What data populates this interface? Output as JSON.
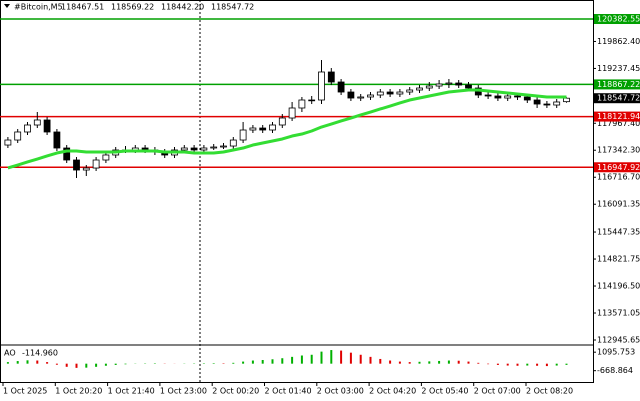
{
  "chart_data": {
    "type": "candlestick",
    "title": "#Bitcoin,M5",
    "last_bar_labels": [
      "118467.51",
      "118569.22",
      "118442.20",
      "118547.72"
    ],
    "candle_color": "#000000",
    "open": [
      117463,
      117579,
      117765,
      117927,
      118043,
      117765,
      117394,
      117116,
      116884,
      116930,
      117116,
      117232,
      117348,
      117348,
      117394,
      117348,
      117301,
      117232,
      117348,
      117394,
      117348,
      117394,
      117417,
      117440,
      117579,
      117811,
      117857,
      117811,
      117927,
      118089,
      118321,
      118506,
      118506,
      119155,
      118923,
      118691,
      118552,
      118576,
      118622,
      118691,
      118645,
      118691,
      118738,
      118784,
      118830,
      118877,
      118900,
      118853,
      118784,
      118622,
      118599,
      118552,
      118599,
      118576,
      118506,
      118413,
      118390,
      118467.51
    ],
    "high": [
      117649,
      117834,
      117997,
      118228,
      118113,
      117834,
      117463,
      117185,
      117000,
      117185,
      117301,
      117417,
      117440,
      117463,
      117463,
      117417,
      117371,
      117417,
      117463,
      117463,
      117463,
      117487,
      117510,
      117649,
      117997,
      117927,
      117927,
      117997,
      118182,
      118460,
      118576,
      118599,
      119433,
      119247,
      118993,
      118761,
      118645,
      118691,
      118761,
      118761,
      118761,
      118807,
      118853,
      118923,
      118969,
      118993,
      118969,
      118923,
      118853,
      118691,
      118668,
      118668,
      118668,
      118645,
      118576,
      118483,
      118529,
      118569.22
    ],
    "low": [
      117394,
      117510,
      117695,
      117857,
      117695,
      117325,
      117046,
      116699,
      116745,
      116861,
      117046,
      117162,
      117278,
      117278,
      117278,
      117232,
      117162,
      117162,
      117278,
      117278,
      117278,
      117348,
      117371,
      117371,
      117510,
      117742,
      117742,
      117742,
      117857,
      118020,
      118228,
      118413,
      118413,
      118853,
      118622,
      118483,
      118483,
      118506,
      118552,
      118576,
      118576,
      118622,
      118668,
      118715,
      118761,
      118784,
      118784,
      118715,
      118552,
      118529,
      118483,
      118483,
      118506,
      118437,
      118321,
      118321,
      118321,
      118442.2
    ],
    "close": [
      117579,
      117765,
      117927,
      118043,
      117765,
      117394,
      117116,
      116884,
      116930,
      117116,
      117232,
      117348,
      117348,
      117394,
      117348,
      117301,
      117232,
      117348,
      117394,
      117348,
      117394,
      117417,
      117440,
      117579,
      117811,
      117857,
      117811,
      117927,
      118089,
      118321,
      118506,
      118506,
      119155,
      118923,
      118691,
      118552,
      118576,
      118622,
      118691,
      118645,
      118691,
      118738,
      118784,
      118830,
      118877,
      118900,
      118853,
      118784,
      118622,
      118599,
      118552,
      118599,
      118576,
      118506,
      118413,
      118390,
      118460,
      118547.72
    ],
    "ma": {
      "color": "#33dd33",
      "values": [
        116931,
        117000,
        117070,
        117139,
        117209,
        117278,
        117325,
        117325,
        117301,
        117301,
        117301,
        117301,
        117325,
        117325,
        117325,
        117325,
        117301,
        117301,
        117301,
        117278,
        117278,
        117278,
        117301,
        117348,
        117394,
        117463,
        117510,
        117556,
        117603,
        117672,
        117718,
        117788,
        117880,
        117950,
        118020,
        118089,
        118159,
        118228,
        118298,
        118367,
        118437,
        118506,
        118552,
        118599,
        118645,
        118691,
        118715,
        118738,
        118738,
        118715,
        118691,
        118668,
        118645,
        118622,
        118599,
        118576,
        118576,
        118576
      ]
    },
    "levels": [
      {
        "value": 120382.55,
        "color": "#00a000"
      },
      {
        "value": 118867.22,
        "color": "#00a000"
      },
      {
        "value": 118121.94,
        "color": "#e00000"
      },
      {
        "value": 116947.92,
        "color": "#e00000"
      }
    ],
    "ylim": [
      112830,
      120823
    ],
    "yticks": [
      {
        "value": 119862.4,
        "label": "119862.40"
      },
      {
        "value": 119237.45,
        "label": "119237.45"
      },
      {
        "value": 117967.4,
        "label": "117967.40"
      },
      {
        "value": 117342.3,
        "label": "117342.30"
      },
      {
        "value": 116716.7,
        "label": "116716.70"
      },
      {
        "value": 116091.35,
        "label": "116091.35"
      },
      {
        "value": 115447.35,
        "label": "115447.35"
      },
      {
        "value": 114821.75,
        "label": "114821.75"
      },
      {
        "value": 114196.5,
        "label": "114196.50"
      },
      {
        "value": 113571.05,
        "label": "113571.05"
      },
      {
        "value": 112945.65,
        "label": "112945.65"
      }
    ],
    "time_labels": [
      "1 Oct 2025",
      "1 Oct 20:20",
      "1 Oct 21:40",
      "1 Oct 23:00",
      "2 Oct 00:20",
      "2 Oct 01:40",
      "2 Oct 03:00",
      "2 Oct 04:20",
      "2 Oct 05:40",
      "2 Oct 07:00",
      "2 Oct 08:20"
    ],
    "ao": {
      "name": "AO",
      "last_label": "-114.960",
      "up_color": "#00b000",
      "down_color": "#e00000",
      "values": [
        150,
        250,
        320,
        300,
        150,
        -100,
        -300,
        -400,
        -380,
        -300,
        -200,
        -120,
        -60,
        -20,
        30,
        40,
        20,
        10,
        20,
        30,
        40,
        50,
        40,
        80,
        200,
        300,
        350,
        420,
        520,
        650,
        780,
        850,
        1150,
        1300,
        1250,
        1050,
        850,
        650,
        450,
        300,
        200,
        150,
        180,
        220,
        260,
        300,
        280,
        200,
        80,
        -50,
        -120,
        -180,
        -200,
        -180,
        -200,
        -230,
        -180,
        -114.96
      ],
      "ylim": [
        -1845,
        1782
      ],
      "yticks": [
        1095.753,
        -668.864
      ]
    }
  }
}
